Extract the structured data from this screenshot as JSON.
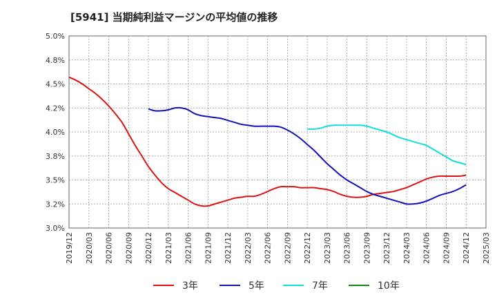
{
  "chart_data": {
    "type": "line",
    "title": "[5941]  当期純利益マージンの平均値の推移",
    "xlabel": "",
    "ylabel": "",
    "ylim": [
      3.0,
      5.0
    ],
    "yticks": [
      "3.0%",
      "3.2%",
      "3.5%",
      "3.8%",
      "4.0%",
      "4.2%",
      "4.5%",
      "4.8%",
      "5.0%"
    ],
    "x_ticks": [
      "2019/12",
      "2020/03",
      "2020/06",
      "2020/09",
      "2020/12",
      "2021/03",
      "2021/06",
      "2021/09",
      "2021/12",
      "2022/03",
      "2022/06",
      "2022/09",
      "2022/12",
      "2023/03",
      "2023/06",
      "2023/09",
      "2023/12",
      "2024/03",
      "2024/06",
      "2024/09",
      "2024/12",
      "2025/03"
    ],
    "grid": true,
    "legend_position": "bottom",
    "series": [
      {
        "name": "3年",
        "color": "#dd1111",
        "points": [
          [
            "2019/12",
            4.57
          ],
          [
            "2020/01",
            4.54
          ],
          [
            "2020/02",
            4.5
          ],
          [
            "2020/03",
            4.45
          ],
          [
            "2020/04",
            4.4
          ],
          [
            "2020/05",
            4.34
          ],
          [
            "2020/06",
            4.27
          ],
          [
            "2020/07",
            4.19
          ],
          [
            "2020/08",
            4.1
          ],
          [
            "2020/09",
            3.98
          ],
          [
            "2020/10",
            3.86
          ],
          [
            "2020/11",
            3.75
          ],
          [
            "2020/12",
            3.64
          ],
          [
            "2021/01",
            3.55
          ],
          [
            "2021/02",
            3.47
          ],
          [
            "2021/03",
            3.41
          ],
          [
            "2021/04",
            3.37
          ],
          [
            "2021/05",
            3.33
          ],
          [
            "2021/06",
            3.29
          ],
          [
            "2021/07",
            3.25
          ],
          [
            "2021/08",
            3.23
          ],
          [
            "2021/09",
            3.23
          ],
          [
            "2021/10",
            3.25
          ],
          [
            "2021/11",
            3.27
          ],
          [
            "2021/12",
            3.29
          ],
          [
            "2022/01",
            3.31
          ],
          [
            "2022/02",
            3.32
          ],
          [
            "2022/03",
            3.33
          ],
          [
            "2022/04",
            3.33
          ],
          [
            "2022/05",
            3.35
          ],
          [
            "2022/06",
            3.38
          ],
          [
            "2022/07",
            3.41
          ],
          [
            "2022/08",
            3.43
          ],
          [
            "2022/09",
            3.43
          ],
          [
            "2022/10",
            3.43
          ],
          [
            "2022/11",
            3.42
          ],
          [
            "2022/12",
            3.42
          ],
          [
            "2023/01",
            3.42
          ],
          [
            "2023/02",
            3.41
          ],
          [
            "2023/03",
            3.4
          ],
          [
            "2023/04",
            3.38
          ],
          [
            "2023/05",
            3.35
          ],
          [
            "2023/06",
            3.33
          ],
          [
            "2023/07",
            3.32
          ],
          [
            "2023/08",
            3.32
          ],
          [
            "2023/09",
            3.33
          ],
          [
            "2023/10",
            3.35
          ],
          [
            "2023/11",
            3.36
          ],
          [
            "2023/12",
            3.37
          ],
          [
            "2024/01",
            3.38
          ],
          [
            "2024/02",
            3.4
          ],
          [
            "2024/03",
            3.42
          ],
          [
            "2024/04",
            3.45
          ],
          [
            "2024/05",
            3.48
          ],
          [
            "2024/06",
            3.51
          ],
          [
            "2024/07",
            3.53
          ],
          [
            "2024/08",
            3.54
          ],
          [
            "2024/09",
            3.54
          ],
          [
            "2024/10",
            3.54
          ],
          [
            "2024/11",
            3.54
          ],
          [
            "2024/12",
            3.55
          ]
        ]
      },
      {
        "name": "5年",
        "color": "#1111bb",
        "points": [
          [
            "2020/12",
            4.24
          ],
          [
            "2021/01",
            4.22
          ],
          [
            "2021/02",
            4.22
          ],
          [
            "2021/03",
            4.23
          ],
          [
            "2021/04",
            4.25
          ],
          [
            "2021/05",
            4.25
          ],
          [
            "2021/06",
            4.23
          ],
          [
            "2021/07",
            4.19
          ],
          [
            "2021/08",
            4.17
          ],
          [
            "2021/09",
            4.16
          ],
          [
            "2021/10",
            4.15
          ],
          [
            "2021/11",
            4.14
          ],
          [
            "2021/12",
            4.12
          ],
          [
            "2022/01",
            4.1
          ],
          [
            "2022/02",
            4.08
          ],
          [
            "2022/03",
            4.07
          ],
          [
            "2022/04",
            4.06
          ],
          [
            "2022/05",
            4.06
          ],
          [
            "2022/06",
            4.06
          ],
          [
            "2022/07",
            4.06
          ],
          [
            "2022/08",
            4.05
          ],
          [
            "2022/09",
            4.02
          ],
          [
            "2022/10",
            3.98
          ],
          [
            "2022/11",
            3.93
          ],
          [
            "2022/12",
            3.87
          ],
          [
            "2023/01",
            3.81
          ],
          [
            "2023/02",
            3.74
          ],
          [
            "2023/03",
            3.67
          ],
          [
            "2023/04",
            3.61
          ],
          [
            "2023/05",
            3.55
          ],
          [
            "2023/06",
            3.5
          ],
          [
            "2023/07",
            3.46
          ],
          [
            "2023/08",
            3.42
          ],
          [
            "2023/09",
            3.38
          ],
          [
            "2023/10",
            3.35
          ],
          [
            "2023/11",
            3.33
          ],
          [
            "2023/12",
            3.31
          ],
          [
            "2024/01",
            3.29
          ],
          [
            "2024/02",
            3.27
          ],
          [
            "2024/03",
            3.25
          ],
          [
            "2024/04",
            3.25
          ],
          [
            "2024/05",
            3.26
          ],
          [
            "2024/06",
            3.28
          ],
          [
            "2024/07",
            3.31
          ],
          [
            "2024/08",
            3.34
          ],
          [
            "2024/09",
            3.36
          ],
          [
            "2024/10",
            3.38
          ],
          [
            "2024/11",
            3.41
          ],
          [
            "2024/12",
            3.45
          ]
        ]
      },
      {
        "name": "7年",
        "color": "#11dddd",
        "points": [
          [
            "2022/12",
            4.03
          ],
          [
            "2023/01",
            4.03
          ],
          [
            "2023/02",
            4.04
          ],
          [
            "2023/03",
            4.06
          ],
          [
            "2023/04",
            4.07
          ],
          [
            "2023/05",
            4.07
          ],
          [
            "2023/06",
            4.07
          ],
          [
            "2023/07",
            4.07
          ],
          [
            "2023/08",
            4.07
          ],
          [
            "2023/09",
            4.06
          ],
          [
            "2023/10",
            4.04
          ],
          [
            "2023/11",
            4.02
          ],
          [
            "2023/12",
            4.0
          ],
          [
            "2024/01",
            3.97
          ],
          [
            "2024/02",
            3.94
          ],
          [
            "2024/03",
            3.92
          ],
          [
            "2024/04",
            3.9
          ],
          [
            "2024/05",
            3.88
          ],
          [
            "2024/06",
            3.86
          ],
          [
            "2024/07",
            3.82
          ],
          [
            "2024/08",
            3.78
          ],
          [
            "2024/09",
            3.74
          ],
          [
            "2024/10",
            3.7
          ],
          [
            "2024/11",
            3.68
          ],
          [
            "2024/12",
            3.66
          ]
        ]
      },
      {
        "name": "10年",
        "color": "#118811",
        "points": []
      }
    ]
  }
}
